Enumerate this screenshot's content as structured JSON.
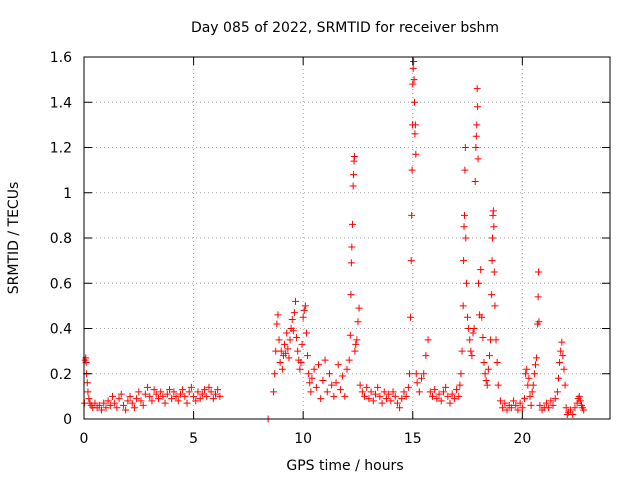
{
  "chart_data": {
    "type": "scatter",
    "title": "Day 085 of 2022, SRMTID for receiver bshm",
    "xlabel": "GPS time / hours",
    "ylabel": "SRMTID / TECUs",
    "xlim": [
      0,
      24
    ],
    "ylim": [
      0,
      1.6
    ],
    "xticks": [
      0,
      5,
      10,
      15,
      20
    ],
    "xtick_labels": [
      "0",
      "5",
      "10",
      "15",
      "20"
    ],
    "yticks": [
      0,
      0.2,
      0.4,
      0.6,
      0.8,
      1,
      1.2,
      1.4,
      1.6
    ],
    "ytick_labels": [
      "0",
      "0.2",
      "0.4",
      "0.6",
      "0.8",
      "1",
      "1.2",
      "1.4",
      "1.6"
    ],
    "grid": true,
    "marker": "+",
    "color": "#ff0000",
    "series": [
      {
        "name": "SRMTID",
        "points": [
          [
            0.02,
            0.07
          ],
          [
            0.05,
            0.26
          ],
          [
            0.08,
            0.27
          ],
          [
            0.1,
            0.25
          ],
          [
            0.12,
            0.2
          ],
          [
            0.15,
            0.16
          ],
          [
            0.18,
            0.12
          ],
          [
            0.22,
            0.09
          ],
          [
            0.27,
            0.07
          ],
          [
            0.33,
            0.06
          ],
          [
            0.4,
            0.05
          ],
          [
            0.5,
            0.07
          ],
          [
            0.6,
            0.05
          ],
          [
            0.7,
            0.06
          ],
          [
            0.8,
            0.04
          ],
          [
            0.9,
            0.07
          ],
          [
            1.0,
            0.05
          ],
          [
            1.1,
            0.08
          ],
          [
            1.2,
            0.06
          ],
          [
            1.3,
            0.1
          ],
          [
            1.4,
            0.07
          ],
          [
            1.5,
            0.05
          ],
          [
            1.6,
            0.09
          ],
          [
            1.7,
            0.11
          ],
          [
            1.8,
            0.06
          ],
          [
            1.9,
            0.04
          ],
          [
            2.0,
            0.08
          ],
          [
            2.1,
            0.1
          ],
          [
            2.2,
            0.07
          ],
          [
            2.3,
            0.05
          ],
          [
            2.4,
            0.09
          ],
          [
            2.5,
            0.12
          ],
          [
            2.6,
            0.08
          ],
          [
            2.7,
            0.06
          ],
          [
            2.8,
            0.11
          ],
          [
            2.9,
            0.14
          ],
          [
            3.0,
            0.1
          ],
          [
            3.1,
            0.08
          ],
          [
            3.2,
            0.13
          ],
          [
            3.3,
            0.11
          ],
          [
            3.4,
            0.09
          ],
          [
            3.5,
            0.12
          ],
          [
            3.6,
            0.1
          ],
          [
            3.7,
            0.07
          ],
          [
            3.8,
            0.11
          ],
          [
            3.9,
            0.13
          ],
          [
            4.0,
            0.09
          ],
          [
            4.1,
            0.12
          ],
          [
            4.2,
            0.1
          ],
          [
            4.3,
            0.08
          ],
          [
            4.4,
            0.11
          ],
          [
            4.5,
            0.13
          ],
          [
            4.6,
            0.1
          ],
          [
            4.7,
            0.07
          ],
          [
            4.8,
            0.12
          ],
          [
            4.9,
            0.14
          ],
          [
            5.0,
            0.1
          ],
          [
            5.1,
            0.08
          ],
          [
            5.2,
            0.12
          ],
          [
            5.3,
            0.09
          ],
          [
            5.4,
            0.11
          ],
          [
            5.5,
            0.13
          ],
          [
            5.6,
            0.1
          ],
          [
            5.7,
            0.14
          ],
          [
            5.8,
            0.12
          ],
          [
            5.9,
            0.09
          ],
          [
            6.0,
            0.11
          ],
          [
            6.1,
            0.13
          ],
          [
            6.2,
            0.1
          ],
          [
            8.4,
            0.0
          ],
          [
            8.65,
            0.12
          ],
          [
            8.7,
            0.2
          ],
          [
            8.75,
            0.3
          ],
          [
            8.8,
            0.42
          ],
          [
            8.85,
            0.46
          ],
          [
            8.9,
            0.35
          ],
          [
            8.95,
            0.25
          ],
          [
            9.0,
            0.3
          ],
          [
            9.05,
            0.22
          ],
          [
            9.1,
            0.28
          ],
          [
            9.15,
            0.33
          ],
          [
            9.2,
            0.29
          ],
          [
            9.25,
            0.38
          ],
          [
            9.3,
            0.31
          ],
          [
            9.35,
            0.27
          ],
          [
            9.4,
            0.35
          ],
          [
            9.45,
            0.4
          ],
          [
            9.5,
            0.44
          ],
          [
            9.55,
            0.39
          ],
          [
            9.6,
            0.47
          ],
          [
            9.65,
            0.52
          ],
          [
            9.7,
            0.36
          ],
          [
            9.75,
            0.3
          ],
          [
            9.8,
            0.26
          ],
          [
            9.85,
            0.22
          ],
          [
            9.9,
            0.25
          ],
          [
            9.95,
            0.33
          ],
          [
            10.0,
            0.45
          ],
          [
            10.05,
            0.48
          ],
          [
            10.1,
            0.5
          ],
          [
            10.15,
            0.38
          ],
          [
            10.2,
            0.28
          ],
          [
            10.25,
            0.2
          ],
          [
            10.3,
            0.16
          ],
          [
            10.35,
            0.12
          ],
          [
            10.4,
            0.18
          ],
          [
            10.5,
            0.22
          ],
          [
            10.6,
            0.14
          ],
          [
            10.7,
            0.24
          ],
          [
            10.8,
            0.09
          ],
          [
            10.9,
            0.17
          ],
          [
            11.0,
            0.26
          ],
          [
            11.1,
            0.12
          ],
          [
            11.2,
            0.2
          ],
          [
            11.3,
            0.15
          ],
          [
            11.4,
            0.1
          ],
          [
            11.5,
            0.16
          ],
          [
            11.6,
            0.24
          ],
          [
            11.7,
            0.13
          ],
          [
            11.8,
            0.19
          ],
          [
            11.9,
            0.1
          ],
          [
            12.0,
            0.22
          ],
          [
            12.1,
            0.26
          ],
          [
            12.15,
            0.37
          ],
          [
            12.18,
            0.55
          ],
          [
            12.2,
            0.69
          ],
          [
            12.22,
            0.76
          ],
          [
            12.25,
            0.86
          ],
          [
            12.28,
            1.03
          ],
          [
            12.3,
            1.08
          ],
          [
            12.32,
            1.14
          ],
          [
            12.34,
            1.16
          ],
          [
            12.36,
            0.3
          ],
          [
            12.4,
            0.33
          ],
          [
            12.45,
            0.35
          ],
          [
            12.5,
            0.43
          ],
          [
            12.55,
            0.49
          ],
          [
            12.6,
            0.15
          ],
          [
            12.7,
            0.12
          ],
          [
            12.8,
            0.1
          ],
          [
            12.9,
            0.14
          ],
          [
            13.0,
            0.09
          ],
          [
            13.1,
            0.12
          ],
          [
            13.2,
            0.08
          ],
          [
            13.3,
            0.11
          ],
          [
            13.4,
            0.14
          ],
          [
            13.5,
            0.1
          ],
          [
            13.6,
            0.07
          ],
          [
            13.7,
            0.12
          ],
          [
            13.8,
            0.09
          ],
          [
            13.9,
            0.11
          ],
          [
            14.0,
            0.08
          ],
          [
            14.1,
            0.12
          ],
          [
            14.2,
            0.1
          ],
          [
            14.3,
            0.07
          ],
          [
            14.4,
            0.05
          ],
          [
            14.5,
            0.09
          ],
          [
            14.6,
            0.12
          ],
          [
            14.7,
            0.1
          ],
          [
            14.8,
            0.14
          ],
          [
            14.85,
            0.2
          ],
          [
            14.9,
            0.45
          ],
          [
            14.93,
            0.7
          ],
          [
            14.95,
            0.9
          ],
          [
            14.97,
            1.1
          ],
          [
            14.99,
            1.3
          ],
          [
            15.0,
            1.48
          ],
          [
            15.02,
            1.55
          ],
          [
            15.04,
            1.58
          ],
          [
            15.06,
            1.5
          ],
          [
            15.08,
            1.4
          ],
          [
            15.1,
            1.26
          ],
          [
            15.12,
            1.3
          ],
          [
            15.14,
            1.17
          ],
          [
            15.16,
            0.2
          ],
          [
            15.2,
            0.16
          ],
          [
            15.3,
            0.12
          ],
          [
            15.4,
            0.18
          ],
          [
            15.5,
            0.2
          ],
          [
            15.6,
            0.28
          ],
          [
            15.7,
            0.35
          ],
          [
            15.8,
            0.12
          ],
          [
            15.9,
            0.1
          ],
          [
            16.0,
            0.13
          ],
          [
            16.1,
            0.09
          ],
          [
            16.2,
            0.11
          ],
          [
            16.3,
            0.08
          ],
          [
            16.4,
            0.12
          ],
          [
            16.5,
            0.14
          ],
          [
            16.6,
            0.1
          ],
          [
            16.7,
            0.07
          ],
          [
            16.8,
            0.11
          ],
          [
            16.9,
            0.09
          ],
          [
            17.0,
            0.13
          ],
          [
            17.1,
            0.1
          ],
          [
            17.15,
            0.15
          ],
          [
            17.2,
            0.2
          ],
          [
            17.25,
            0.3
          ],
          [
            17.3,
            0.5
          ],
          [
            17.32,
            0.7
          ],
          [
            17.34,
            0.85
          ],
          [
            17.36,
            0.9
          ],
          [
            17.38,
            1.1
          ],
          [
            17.4,
            1.2
          ],
          [
            17.42,
            0.8
          ],
          [
            17.45,
            0.6
          ],
          [
            17.5,
            0.45
          ],
          [
            17.55,
            0.4
          ],
          [
            17.6,
            0.35
          ],
          [
            17.65,
            0.3
          ],
          [
            17.7,
            0.28
          ],
          [
            17.75,
            0.38
          ],
          [
            17.8,
            0.4
          ],
          [
            17.85,
            1.05
          ],
          [
            17.88,
            1.2
          ],
          [
            17.9,
            1.25
          ],
          [
            17.92,
            1.3
          ],
          [
            17.94,
            1.46
          ],
          [
            17.96,
            1.38
          ],
          [
            17.98,
            1.15
          ],
          [
            18.0,
            0.6
          ],
          [
            18.05,
            0.46
          ],
          [
            18.1,
            0.66
          ],
          [
            18.15,
            0.45
          ],
          [
            18.2,
            0.36
          ],
          [
            18.25,
            0.25
          ],
          [
            18.3,
            0.2
          ],
          [
            18.35,
            0.17
          ],
          [
            18.4,
            0.15
          ],
          [
            18.45,
            0.22
          ],
          [
            18.5,
            0.28
          ],
          [
            18.55,
            0.35
          ],
          [
            18.6,
            0.55
          ],
          [
            18.62,
            0.7
          ],
          [
            18.64,
            0.8
          ],
          [
            18.66,
            0.9
          ],
          [
            18.68,
            0.92
          ],
          [
            18.7,
            0.85
          ],
          [
            18.72,
            0.65
          ],
          [
            18.75,
            0.5
          ],
          [
            18.8,
            0.35
          ],
          [
            18.85,
            0.25
          ],
          [
            18.9,
            0.15
          ],
          [
            19.0,
            0.08
          ],
          [
            19.1,
            0.05
          ],
          [
            19.2,
            0.07
          ],
          [
            19.3,
            0.04
          ],
          [
            19.4,
            0.06
          ],
          [
            19.5,
            0.05
          ],
          [
            19.6,
            0.08
          ],
          [
            19.7,
            0.06
          ],
          [
            19.8,
            0.04
          ],
          [
            19.9,
            0.07
          ],
          [
            20.0,
            0.05
          ],
          [
            20.1,
            0.09
          ],
          [
            20.15,
            0.2
          ],
          [
            20.2,
            0.22
          ],
          [
            20.25,
            0.15
          ],
          [
            20.3,
            0.18
          ],
          [
            20.35,
            0.1
          ],
          [
            20.4,
            0.06
          ],
          [
            20.45,
            0.12
          ],
          [
            20.5,
            0.15
          ],
          [
            20.55,
            0.2
          ],
          [
            20.6,
            0.24
          ],
          [
            20.65,
            0.27
          ],
          [
            20.7,
            0.42
          ],
          [
            20.72,
            0.54
          ],
          [
            20.74,
            0.65
          ],
          [
            20.76,
            0.43
          ],
          [
            20.8,
            0.06
          ],
          [
            20.9,
            0.04
          ],
          [
            21.0,
            0.05
          ],
          [
            21.1,
            0.07
          ],
          [
            21.2,
            0.05
          ],
          [
            21.3,
            0.08
          ],
          [
            21.4,
            0.06
          ],
          [
            21.5,
            0.09
          ],
          [
            21.6,
            0.12
          ],
          [
            21.65,
            0.18
          ],
          [
            21.7,
            0.25
          ],
          [
            21.75,
            0.3
          ],
          [
            21.8,
            0.34
          ],
          [
            21.85,
            0.28
          ],
          [
            21.9,
            0.22
          ],
          [
            21.95,
            0.15
          ],
          [
            22.0,
            0.05
          ],
          [
            22.05,
            0.02
          ],
          [
            22.1,
            0.03
          ],
          [
            22.2,
            0.04
          ],
          [
            22.3,
            0.02
          ],
          [
            22.4,
            0.05
          ],
          [
            22.5,
            0.07
          ],
          [
            22.55,
            0.09
          ],
          [
            22.6,
            0.1
          ],
          [
            22.65,
            0.08
          ],
          [
            22.7,
            0.06
          ],
          [
            22.75,
            0.05
          ],
          [
            22.8,
            0.04
          ]
        ]
      }
    ]
  }
}
